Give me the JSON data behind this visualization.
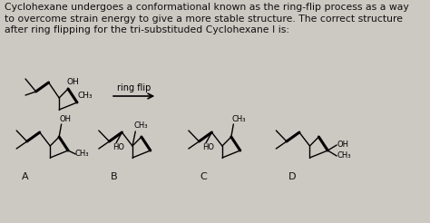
{
  "background_color": "#ccc8c2",
  "title_text": "Cyclohexane undergoes a conformational known as the ring-flip process as a way\nto overcome strain energy to give a more stable structure. The correct structure\nafter ring flipping for the tri-substituded Cyclohexane I is:",
  "title_fontsize": 7.8,
  "title_color": "#111111",
  "ring_flip_label": "ring flip",
  "labels": [
    "A",
    "B",
    "C",
    "D"
  ],
  "label_fontsize": 8,
  "label_color": "#111111",
  "fig_width": 4.74,
  "fig_height": 2.46,
  "dpi": 100
}
